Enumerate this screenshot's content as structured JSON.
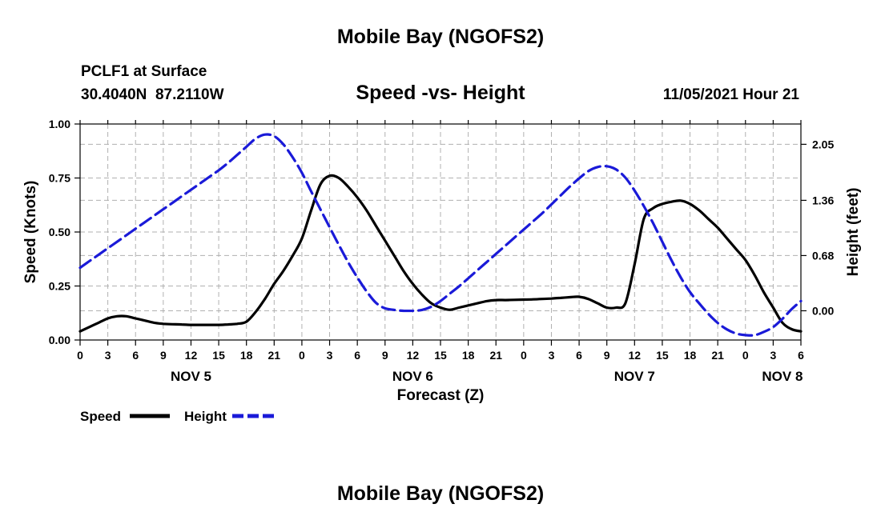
{
  "page_title": "Mobile Bay (NGOFS2)",
  "station_line": "PCLF1 at Surface",
  "coords_line": "30.4040N  87.2110W",
  "timestamp": "11/05/2021 Hour 21",
  "footer_title": "Mobile Bay (NGOFS2)",
  "chart_data": {
    "type": "line",
    "title": "Speed -vs- Height",
    "xlabel": "Forecast (Z)",
    "ylabel_left": "Speed (Knots)",
    "ylabel_right": "Height (feet)",
    "x_range_hours": [
      0,
      78
    ],
    "x_tick_step_hours": 3,
    "x_tick_labels": [
      "0",
      "3",
      "6",
      "9",
      "12",
      "15",
      "18",
      "21",
      "0",
      "3",
      "6",
      "9",
      "12",
      "15",
      "18",
      "21",
      "0",
      "3",
      "6",
      "9",
      "12",
      "15",
      "18",
      "21",
      "0",
      "3",
      "6"
    ],
    "day_labels": [
      {
        "label": "NOV 5",
        "hour": 12
      },
      {
        "label": "NOV 6",
        "hour": 36
      },
      {
        "label": "NOV 7",
        "hour": 60
      },
      {
        "label": "NOV 8",
        "hour": 76
      }
    ],
    "y_left": {
      "range": [
        0,
        1.0
      ],
      "ticks": [
        0,
        0.25,
        0.5,
        0.75,
        1.0
      ],
      "tick_labels": [
        "0.00",
        "0.25",
        "0.50",
        "0.75",
        "1.00"
      ]
    },
    "y_right": {
      "range": [
        -0.36,
        2.3
      ],
      "ticks": [
        0,
        0.68,
        1.36,
        2.05
      ],
      "tick_labels": [
        "0.00",
        "0.68",
        "1.36",
        "2.05"
      ]
    },
    "grid": true,
    "legend": {
      "position": "bottom-left",
      "entries": [
        {
          "label": "Speed",
          "color": "#000000",
          "style": "solid"
        },
        {
          "label": "Height",
          "color": "#1a1ad8",
          "style": "dashed"
        }
      ]
    },
    "series": [
      {
        "name": "Speed",
        "axis": "left",
        "color": "#000000",
        "style": "solid",
        "x": [
          0,
          1,
          2,
          3,
          4,
          5,
          6,
          7,
          8,
          9,
          10,
          11,
          12,
          13,
          14,
          15,
          16,
          17,
          18,
          19,
          20,
          21,
          22,
          23,
          24,
          25,
          26,
          27,
          28,
          29,
          30,
          31,
          32,
          33,
          34,
          35,
          36,
          37,
          38,
          39,
          40,
          41,
          42,
          43,
          44,
          45,
          46,
          47,
          48,
          49,
          50,
          51,
          52,
          53,
          54,
          55,
          56,
          57,
          58,
          59,
          60,
          61,
          62,
          63,
          64,
          65,
          66,
          67,
          68,
          69,
          70,
          71,
          72,
          73,
          74,
          75,
          76,
          77,
          78
        ],
        "y": [
          0.04,
          0.06,
          0.08,
          0.1,
          0.11,
          0.11,
          0.1,
          0.09,
          0.08,
          0.075,
          0.073,
          0.072,
          0.07,
          0.07,
          0.07,
          0.07,
          0.072,
          0.075,
          0.085,
          0.13,
          0.19,
          0.26,
          0.32,
          0.39,
          0.47,
          0.6,
          0.72,
          0.76,
          0.75,
          0.71,
          0.66,
          0.6,
          0.53,
          0.46,
          0.39,
          0.32,
          0.26,
          0.21,
          0.17,
          0.15,
          0.14,
          0.15,
          0.16,
          0.17,
          0.18,
          0.185,
          0.185,
          0.186,
          0.187,
          0.188,
          0.19,
          0.192,
          0.195,
          0.198,
          0.2,
          0.19,
          0.17,
          0.15,
          0.15,
          0.17,
          0.35,
          0.56,
          0.61,
          0.63,
          0.64,
          0.645,
          0.63,
          0.6,
          0.56,
          0.52,
          0.47,
          0.42,
          0.37,
          0.3,
          0.22,
          0.15,
          0.08,
          0.05,
          0.04
        ]
      },
      {
        "name": "Height",
        "axis": "right",
        "color": "#1a1ad8",
        "style": "dashed",
        "x": [
          0,
          1,
          2,
          3,
          4,
          5,
          6,
          7,
          8,
          9,
          10,
          11,
          12,
          13,
          14,
          15,
          16,
          17,
          18,
          19,
          20,
          21,
          22,
          23,
          24,
          25,
          26,
          27,
          28,
          29,
          30,
          31,
          32,
          33,
          34,
          35,
          36,
          37,
          38,
          39,
          40,
          41,
          42,
          43,
          44,
          45,
          46,
          47,
          48,
          49,
          50,
          51,
          52,
          53,
          54,
          55,
          56,
          57,
          58,
          59,
          60,
          61,
          62,
          63,
          64,
          65,
          66,
          67,
          68,
          69,
          70,
          71,
          72,
          73,
          74,
          75,
          76,
          77,
          78
        ],
        "y": [
          0.53,
          0.61,
          0.69,
          0.77,
          0.85,
          0.93,
          1.01,
          1.09,
          1.17,
          1.25,
          1.33,
          1.41,
          1.49,
          1.57,
          1.65,
          1.73,
          1.82,
          1.92,
          2.02,
          2.12,
          2.17,
          2.15,
          2.05,
          1.89,
          1.7,
          1.47,
          1.25,
          1.03,
          0.81,
          0.6,
          0.41,
          0.24,
          0.1,
          0.03,
          0.01,
          0.0,
          0.0,
          0.01,
          0.05,
          0.12,
          0.21,
          0.3,
          0.4,
          0.5,
          0.6,
          0.7,
          0.8,
          0.9,
          1.0,
          1.1,
          1.2,
          1.31,
          1.42,
          1.53,
          1.63,
          1.72,
          1.77,
          1.78,
          1.74,
          1.64,
          1.48,
          1.29,
          1.08,
          0.85,
          0.62,
          0.41,
          0.23,
          0.09,
          -0.04,
          -0.15,
          -0.23,
          -0.28,
          -0.3,
          -0.3,
          -0.26,
          -0.2,
          -0.1,
          0.02,
          0.12
        ]
      }
    ]
  }
}
